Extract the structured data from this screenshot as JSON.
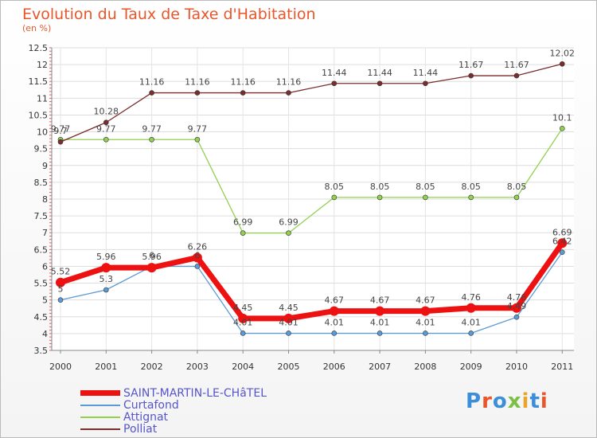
{
  "title": "Evolution du Taux de Taxe d'Habitation",
  "unit_label": "(en %)",
  "logo": {
    "text": "Proxiti",
    "colors": [
      "#3b8fd9",
      "#e8562b",
      "#3b8fd9",
      "#7bc043",
      "#e8a52b",
      "#3b8fd9",
      "#e8562b"
    ]
  },
  "chart_data": {
    "type": "line",
    "categories": [
      "2000",
      "2001",
      "2002",
      "2003",
      "2004",
      "2005",
      "2006",
      "2007",
      "2008",
      "2009",
      "2010",
      "2011"
    ],
    "ylim": [
      3.5,
      12.5
    ],
    "yticks": [
      "3.5",
      "4",
      "4.5",
      "5",
      "5.5",
      "6",
      "6.5",
      "7",
      "7.5",
      "8",
      "8.5",
      "9",
      "9.5",
      "10",
      "10.5",
      "11",
      "11.5",
      "12",
      "12.5"
    ],
    "series": [
      {
        "name": "SAINT-MARTIN-LE-CHâTEL",
        "color": "#ee1111",
        "thick": true,
        "values": [
          5.52,
          5.96,
          5.96,
          6.26,
          4.45,
          4.45,
          4.67,
          4.67,
          4.67,
          4.76,
          4.76,
          6.69
        ],
        "labels": [
          "5.52",
          "5.96",
          "5.96",
          "6.26",
          "4.45",
          "4.45",
          "4.67",
          "4.67",
          "4.67",
          "4.76",
          "4.76",
          "6.69"
        ]
      },
      {
        "name": "Curtafond",
        "color": "#5b9bd5",
        "thick": false,
        "values": [
          5,
          5.3,
          6,
          6,
          4.01,
          4.01,
          4.01,
          4.01,
          4.01,
          4.01,
          4.49,
          6.42
        ],
        "labels": [
          "5",
          "5.3",
          "6",
          "6",
          "4.01",
          "4.01",
          "4.01",
          "4.01",
          "4.01",
          "4.01",
          "4.49",
          "6.42"
        ]
      },
      {
        "name": "Attignat",
        "color": "#92d050",
        "thick": false,
        "values": [
          9.77,
          9.77,
          9.77,
          9.77,
          6.99,
          6.99,
          8.05,
          8.05,
          8.05,
          8.05,
          8.05,
          10.1
        ],
        "labels": [
          "9.77",
          "9.77",
          "9.77",
          "9.77",
          "6.99",
          "6.99",
          "8.05",
          "8.05",
          "8.05",
          "8.05",
          "8.05",
          "10.1"
        ]
      },
      {
        "name": "Polliat",
        "color": "#7b2c2c",
        "thick": false,
        "values": [
          9.7,
          10.28,
          11.16,
          11.16,
          11.16,
          11.16,
          11.44,
          11.44,
          11.44,
          11.67,
          11.67,
          12.02
        ],
        "labels": [
          "9.7",
          "10.28",
          "11.16",
          "11.16",
          "11.16",
          "11.16",
          "11.44",
          "11.44",
          "11.44",
          "11.67",
          "11.67",
          "12.02"
        ]
      }
    ]
  }
}
